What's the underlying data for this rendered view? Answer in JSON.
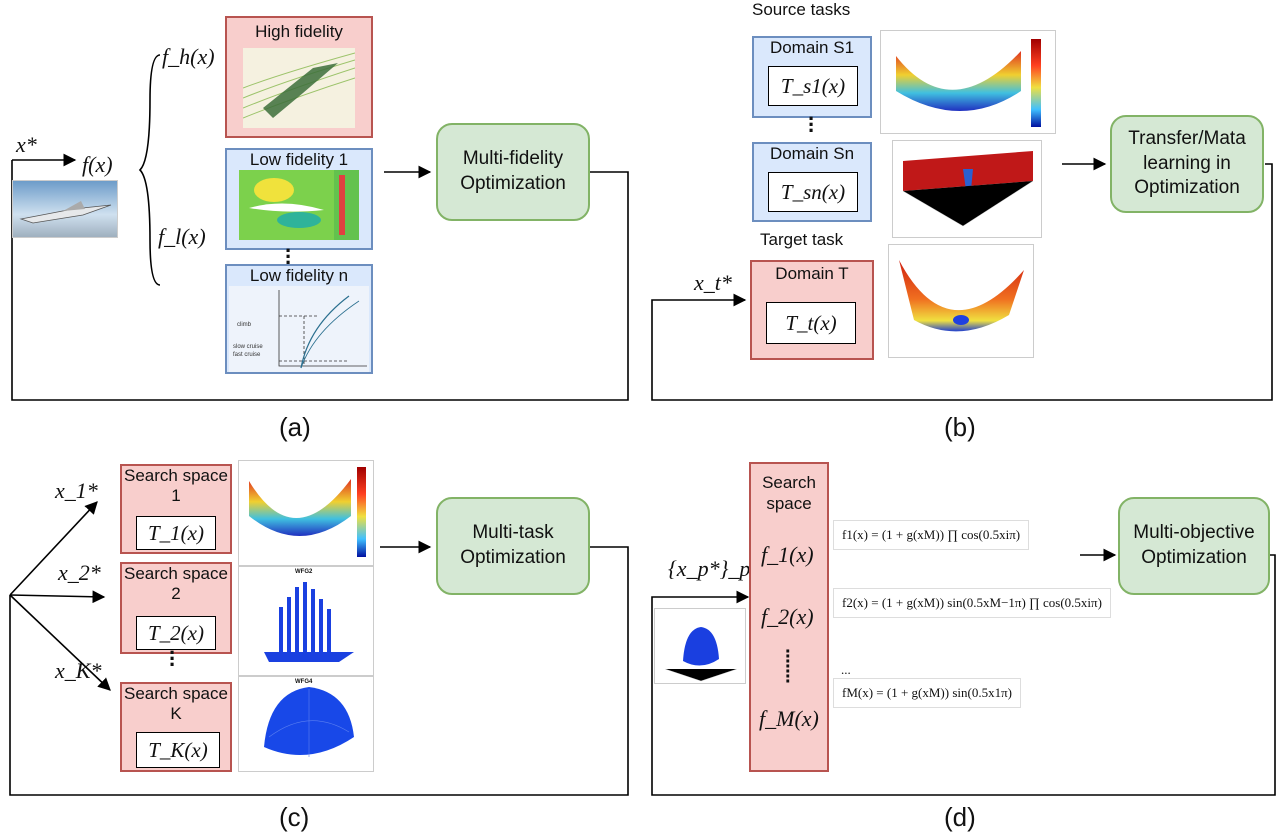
{
  "panel_a": {
    "input_var": "x*",
    "func": "f(x)",
    "f_high": "f_h(x)",
    "f_low": "f_l(x)",
    "high_fidelity": "High fidelity",
    "low_fidelity_1": "Low fidelity 1",
    "low_fidelity_n": "Low fidelity n",
    "optimizer": "Multi-fidelity Optimization",
    "caption": "(a)"
  },
  "panel_b": {
    "source_tasks": "Source tasks",
    "domain_s1": "Domain S1",
    "task_s1": "T_s1(x)",
    "domain_sn": "Domain Sn",
    "task_sn": "T_sn(x)",
    "target_task": "Target task",
    "domain_t": "Domain T",
    "task_t": "T_t(x)",
    "input_var": "x_t*",
    "optimizer": "Transfer/Mata learning in Optimization",
    "caption": "(b)"
  },
  "panel_c": {
    "x1": "x_1*",
    "x2": "x_2*",
    "xk": "x_K*",
    "space1": "Search space 1",
    "task1": "T_1(x)",
    "space2": "Search space 2",
    "task2": "T_2(x)",
    "spacek": "Search space K",
    "taskk": "T_K(x)",
    "wfg2": "WFG2",
    "wfg4": "WFG4",
    "optimizer": "Multi-task Optimization",
    "caption": "(c)"
  },
  "panel_d": {
    "input_var": "{x_p*}_p^P",
    "search_space": "Search space",
    "f1": "f_1(x)",
    "f2": "f_2(x)",
    "fm": "f_M(x)",
    "formula1": "f1(x) = (1 + g(xM)) ∏ cos(0.5xiπ)",
    "formula2": "f2(x) = (1 + g(xM)) sin(0.5xM−1π) ∏ cos(0.5xiπ)",
    "formula_dots": "...",
    "formula3": "fM(x) = (1 + g(xM)) sin(0.5x1π)",
    "optimizer": "Multi-objective Optimization",
    "caption": "(d)"
  }
}
